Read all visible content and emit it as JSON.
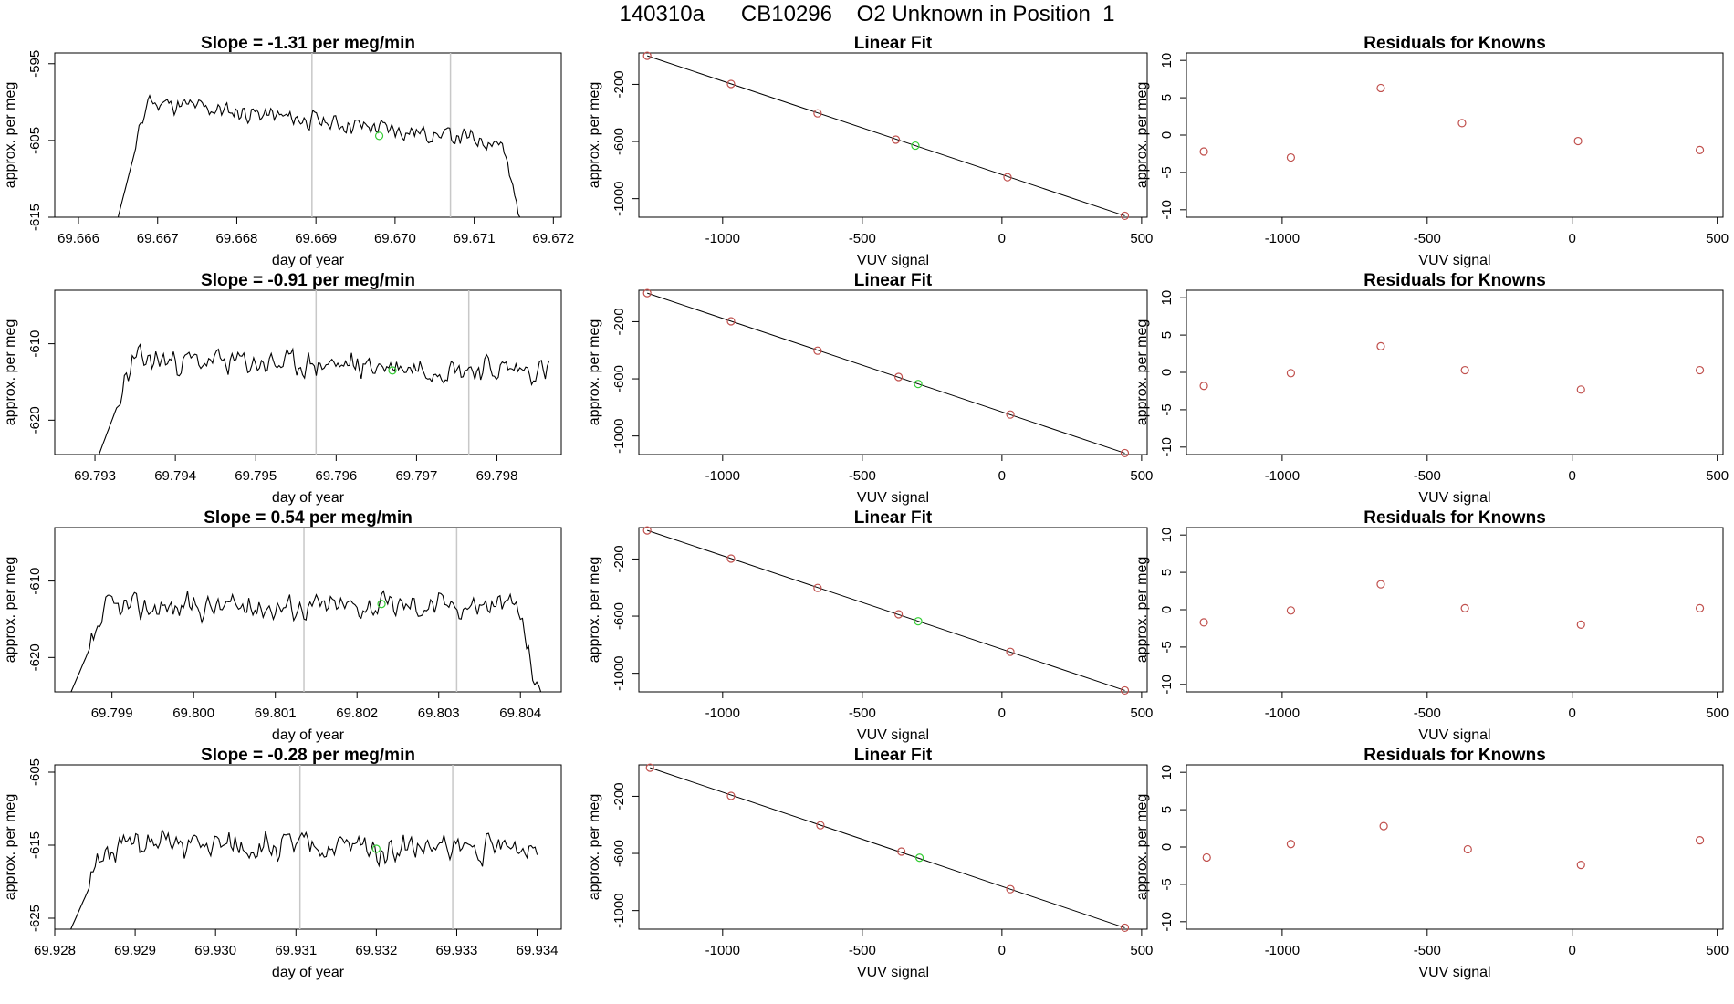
{
  "figure_title": "140310a      CB10296    O2 Unknown in Position  1",
  "colors": {
    "trace": "#000000",
    "known_points": "#c0504d",
    "unknown_point": "#33cc33",
    "marker_lines": "#c8c8c8",
    "fit_line": "#000000"
  },
  "chart_data": [
    {
      "type": "line",
      "row": 1,
      "col": 1,
      "title": "Slope =  -1.31  per meg/min",
      "xlabel": "day of year",
      "ylabel": "approx. per meg",
      "xlim": [
        69.6657,
        69.6721
      ],
      "ylim": [
        -615,
        -593.6
      ],
      "xticks": [
        "69.666",
        "69.667",
        "69.668",
        "69.669",
        "69.670",
        "69.671",
        "69.672"
      ],
      "yticks": [
        "-595",
        "-605",
        "-615"
      ],
      "vlines": [
        69.66895,
        69.6707
      ],
      "unknown_point": [
        69.6698,
        -604.4
      ],
      "trace": {
        "start": 69.6665,
        "end": 69.6716,
        "base": -599.5,
        "rise_to": -598.5,
        "drift": -6,
        "amp": 1.5,
        "drop_to": -616,
        "seed": 11
      }
    },
    {
      "type": "line",
      "row": 1,
      "col": 2,
      "title": "Linear Fit",
      "xlabel": "VUV signal",
      "ylabel": "approx. per meg",
      "xlim": [
        -1300,
        520
      ],
      "ylim": [
        -1130,
        20
      ],
      "xticks": [
        "-1000",
        "-500",
        "0",
        "500"
      ],
      "yticks": [
        "-200",
        "-600",
        "-1000"
      ],
      "points": [
        [
          -1270,
          0
        ],
        [
          -970,
          -197
        ],
        [
          -660,
          -403
        ],
        [
          -380,
          -587
        ],
        [
          20,
          -850
        ],
        [
          440,
          -1120
        ]
      ],
      "unknown_point": [
        -310,
        -629
      ]
    },
    {
      "type": "scatter",
      "row": 1,
      "col": 3,
      "title": "Residuals for Knowns",
      "xlabel": "VUV signal",
      "ylabel": "approx. per meg",
      "xlim": [
        -1330,
        520
      ],
      "ylim": [
        -11,
        11
      ],
      "xticks": [
        "-1000",
        "-500",
        "0",
        "500"
      ],
      "yticks": [
        "10",
        "5",
        "0",
        "-5",
        "-10"
      ],
      "points": [
        [
          -1270,
          -2.2
        ],
        [
          -970,
          -3
        ],
        [
          -660,
          6.3
        ],
        [
          -380,
          1.6
        ],
        [
          20,
          -0.8
        ],
        [
          440,
          -2
        ]
      ]
    },
    {
      "type": "line",
      "row": 2,
      "col": 1,
      "title": "Slope =  -0.91  per meg/min",
      "xlabel": "day of year",
      "ylabel": "approx. per meg",
      "xlim": [
        69.7925,
        69.7988
      ],
      "ylim": [
        -624.5,
        -603
      ],
      "xticks": [
        "69.793",
        "69.794",
        "69.795",
        "69.796",
        "69.797",
        "69.798"
      ],
      "yticks": [
        "-610",
        "-620"
      ],
      "vlines": [
        69.79575,
        69.79765
      ],
      "unknown_point": [
        69.7967,
        -613.5
      ],
      "trace": {
        "start": 69.79305,
        "end": 69.79865,
        "base": -612,
        "rise_to": -612,
        "drift": -1.5,
        "amp": 2.2,
        "drop_to": -613.5,
        "seed": 23
      }
    },
    {
      "type": "line",
      "row": 2,
      "col": 2,
      "title": "Linear Fit",
      "xlabel": "VUV signal",
      "ylabel": "approx. per meg",
      "xlim": [
        -1300,
        520
      ],
      "ylim": [
        -1130,
        20
      ],
      "xticks": [
        "-1000",
        "-500",
        "0",
        "500"
      ],
      "yticks": [
        "-200",
        "-600",
        "-1000"
      ],
      "points": [
        [
          -1270,
          0
        ],
        [
          -970,
          -197
        ],
        [
          -660,
          -403
        ],
        [
          -370,
          -587
        ],
        [
          30,
          -850
        ],
        [
          440,
          -1120
        ]
      ],
      "unknown_point": [
        -300,
        -636
      ]
    },
    {
      "type": "scatter",
      "row": 2,
      "col": 3,
      "title": "Residuals for Knowns",
      "xlabel": "VUV signal",
      "ylabel": "approx. per meg",
      "xlim": [
        -1330,
        520
      ],
      "ylim": [
        -11,
        11
      ],
      "xticks": [
        "-1000",
        "-500",
        "0",
        "500"
      ],
      "yticks": [
        "10",
        "5",
        "0",
        "-5",
        "-10"
      ],
      "points": [
        [
          -1270,
          -1.8
        ],
        [
          -970,
          -0.1
        ],
        [
          -660,
          3.5
        ],
        [
          -370,
          0.3
        ],
        [
          30,
          -2.3
        ],
        [
          440,
          0.3
        ]
      ]
    },
    {
      "type": "line",
      "row": 3,
      "col": 1,
      "title": "Slope =  0.54  per meg/min",
      "xlabel": "day of year",
      "ylabel": "approx. per meg",
      "xlim": [
        69.7983,
        69.8045
      ],
      "ylim": [
        -624.5,
        -603
      ],
      "xticks": [
        "69.799",
        "69.800",
        "69.801",
        "69.802",
        "69.803",
        "69.804"
      ],
      "yticks": [
        "-610",
        "-620"
      ],
      "vlines": [
        69.80135,
        69.80322
      ],
      "unknown_point": [
        69.8023,
        -613
      ],
      "trace": {
        "start": 69.7985,
        "end": 69.80425,
        "base": -613.5,
        "rise_to": -613,
        "drift": 0.5,
        "amp": 2.2,
        "drop_to": -626,
        "seed": 37
      }
    },
    {
      "type": "line",
      "row": 3,
      "col": 2,
      "title": "Linear Fit",
      "xlabel": "VUV signal",
      "ylabel": "approx. per meg",
      "xlim": [
        -1300,
        520
      ],
      "ylim": [
        -1130,
        20
      ],
      "xticks": [
        "-1000",
        "-500",
        "0",
        "500"
      ],
      "yticks": [
        "-200",
        "-600",
        "-1000"
      ],
      "points": [
        [
          -1270,
          0
        ],
        [
          -970,
          -197
        ],
        [
          -660,
          -403
        ],
        [
          -370,
          -587
        ],
        [
          30,
          -850
        ],
        [
          440,
          -1120
        ]
      ],
      "unknown_point": [
        -300,
        -636
      ]
    },
    {
      "type": "scatter",
      "row": 3,
      "col": 3,
      "title": "Residuals for Knowns",
      "xlabel": "VUV signal",
      "ylabel": "approx. per meg",
      "xlim": [
        -1330,
        520
      ],
      "ylim": [
        -11,
        11
      ],
      "xticks": [
        "-1000",
        "-500",
        "0",
        "500"
      ],
      "yticks": [
        "10",
        "5",
        "0",
        "-5",
        "-10"
      ],
      "points": [
        [
          -1270,
          -1.7
        ],
        [
          -970,
          -0.1
        ],
        [
          -660,
          3.4
        ],
        [
          -370,
          0.2
        ],
        [
          30,
          -2
        ],
        [
          440,
          0.2
        ]
      ]
    },
    {
      "type": "line",
      "row": 4,
      "col": 1,
      "title": "Slope =  -0.28  per meg/min",
      "xlabel": "day of year",
      "ylabel": "approx. per meg",
      "xlim": [
        69.928,
        69.9343
      ],
      "ylim": [
        -626.5,
        -604
      ],
      "xticks": [
        "69.928",
        "69.929",
        "69.930",
        "69.931",
        "69.932",
        "69.933",
        "69.934"
      ],
      "yticks": [
        "-605",
        "-615",
        "-625"
      ],
      "vlines": [
        69.93105,
        69.93295
      ],
      "unknown_point": [
        69.932,
        -615.5
      ],
      "trace": {
        "start": 69.9282,
        "end": 69.934,
        "base": -615,
        "rise_to": -615,
        "drift": -0.5,
        "amp": 2.6,
        "drop_to": -615,
        "seed": 51
      }
    },
    {
      "type": "line",
      "row": 4,
      "col": 2,
      "title": "Linear Fit",
      "xlabel": "VUV signal",
      "ylabel": "approx. per meg",
      "xlim": [
        -1300,
        520
      ],
      "ylim": [
        -1130,
        20
      ],
      "xticks": [
        "-1000",
        "-500",
        "0",
        "500"
      ],
      "yticks": [
        "-200",
        "-600",
        "-1000"
      ],
      "points": [
        [
          -1260,
          0
        ],
        [
          -970,
          -197
        ],
        [
          -650,
          -403
        ],
        [
          -360,
          -587
        ],
        [
          30,
          -850
        ],
        [
          440,
          -1120
        ]
      ],
      "unknown_point": [
        -295,
        -630
      ]
    },
    {
      "type": "scatter",
      "row": 4,
      "col": 3,
      "title": "Residuals for Knowns",
      "xlabel": "VUV signal",
      "ylabel": "approx. per meg",
      "xlim": [
        -1330,
        520
      ],
      "ylim": [
        -11,
        11
      ],
      "xticks": [
        "-1000",
        "-500",
        "0",
        "500"
      ],
      "yticks": [
        "10",
        "5",
        "0",
        "-5",
        "-10"
      ],
      "points": [
        [
          -1260,
          -1.4
        ],
        [
          -970,
          0.4
        ],
        [
          -650,
          2.8
        ],
        [
          -360,
          -0.3
        ],
        [
          30,
          -2.4
        ],
        [
          440,
          0.9
        ]
      ]
    }
  ]
}
